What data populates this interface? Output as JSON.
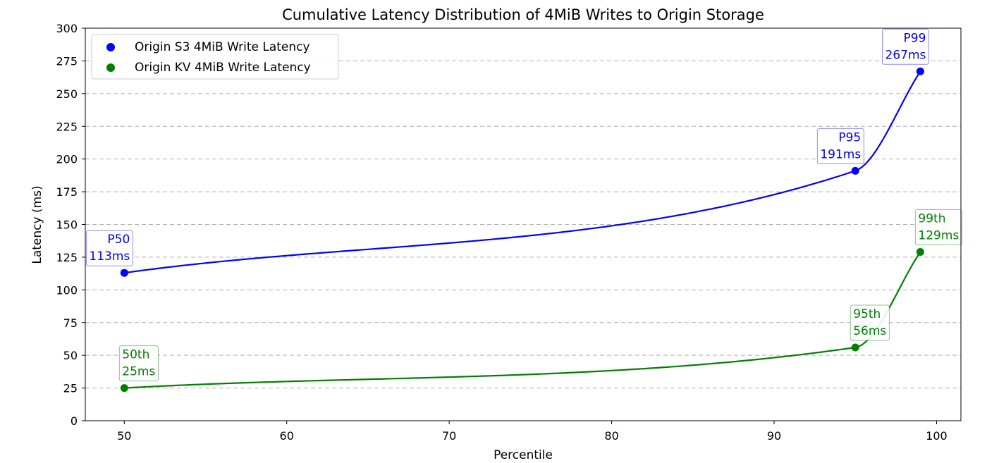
{
  "chart_data": {
    "type": "line",
    "title": "Cumulative Latency Distribution of 4MiB Writes to Origin Storage",
    "xlabel": "Percentile",
    "ylabel": "Latency (ms)",
    "xlim": [
      47.6,
      101.5
    ],
    "ylim": [
      0,
      300
    ],
    "xticks": [
      50,
      60,
      70,
      80,
      90,
      100
    ],
    "yticks": [
      0,
      25,
      50,
      75,
      100,
      125,
      150,
      175,
      200,
      225,
      250,
      275,
      300
    ],
    "grid": "horizontal-dashed",
    "legend_position": "top-left",
    "series": [
      {
        "name": "Origin S3 4MiB Write Latency",
        "color": "#0000ff",
        "x": [
          50,
          95,
          99
        ],
        "y": [
          113,
          191,
          267
        ],
        "annotations": [
          {
            "line1": "P50",
            "line2": "113ms"
          },
          {
            "line1": "P95",
            "line2": "191ms"
          },
          {
            "line1": "P99",
            "line2": "267ms"
          }
        ]
      },
      {
        "name": "Origin KV 4MiB Write Latency",
        "color": "#008000",
        "x": [
          50,
          95,
          99
        ],
        "y": [
          25,
          56,
          129
        ],
        "annotations": [
          {
            "line1": "50th",
            "line2": "25ms"
          },
          {
            "line1": "95th",
            "line2": "56ms"
          },
          {
            "line1": "99th",
            "line2": "129ms"
          }
        ]
      }
    ]
  }
}
